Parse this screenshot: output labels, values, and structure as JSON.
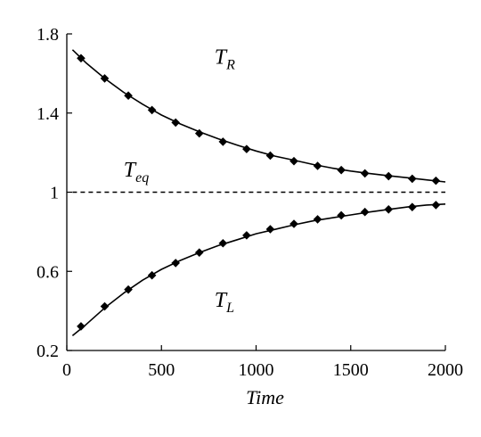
{
  "chart_data": {
    "type": "line",
    "title": "",
    "xlabel": "Time",
    "ylabel": "",
    "xlim": [
      0,
      2000
    ],
    "ylim": [
      0.2,
      1.8
    ],
    "x_ticks": [
      0,
      500,
      1000,
      1500,
      2000
    ],
    "y_ticks": [
      0.2,
      0.6,
      1,
      1.4,
      1.8
    ],
    "y_tick_labels": [
      "0.2",
      "0.6",
      "1",
      "1.4",
      "1.8"
    ],
    "grid": false,
    "legend": "none",
    "series": [
      {
        "name": "T_R",
        "label_main": "T",
        "label_sub": "R",
        "label_at": [
          780,
          1.65
        ],
        "style": "line+diamond-markers",
        "color": "#000000",
        "curve": {
          "x": [
            30,
            100,
            200,
            300,
            400,
            500,
            600,
            700,
            800,
            900,
            1000,
            1100,
            1200,
            1300,
            1400,
            1500,
            1600,
            1700,
            1800,
            1900,
            2000
          ],
          "y": [
            1.72,
            1.655,
            1.575,
            1.505,
            1.445,
            1.39,
            1.345,
            1.305,
            1.27,
            1.238,
            1.208,
            1.182,
            1.162,
            1.14,
            1.122,
            1.107,
            1.094,
            1.083,
            1.073,
            1.062,
            1.052
          ]
        },
        "markers": {
          "x": [
            75,
            200,
            325,
            450,
            575,
            700,
            825,
            950,
            1075,
            1200,
            1325,
            1450,
            1575,
            1700,
            1825,
            1950
          ],
          "y": [
            1.677,
            1.575,
            1.488,
            1.415,
            1.352,
            1.297,
            1.255,
            1.218,
            1.185,
            1.157,
            1.133,
            1.112,
            1.095,
            1.081,
            1.068,
            1.058
          ]
        }
      },
      {
        "name": "T_eq",
        "label_main": "T",
        "label_sub": "eq",
        "label_at": [
          300,
          1.08
        ],
        "style": "dashed",
        "color": "#000000",
        "curve": {
          "x": [
            30,
            2000
          ],
          "y": [
            1.0,
            1.0
          ]
        }
      },
      {
        "name": "T_L",
        "label_main": "T",
        "label_sub": "L",
        "label_at": [
          780,
          0.42
        ],
        "style": "line+diamond-markers",
        "color": "#000000",
        "curve": {
          "x": [
            30,
            100,
            200,
            300,
            400,
            500,
            600,
            700,
            800,
            900,
            1000,
            1100,
            1200,
            1300,
            1400,
            1500,
            1600,
            1700,
            1800,
            1900,
            2000
          ],
          "y": [
            0.275,
            0.33,
            0.415,
            0.49,
            0.555,
            0.61,
            0.655,
            0.695,
            0.73,
            0.76,
            0.79,
            0.812,
            0.835,
            0.855,
            0.87,
            0.885,
            0.9,
            0.913,
            0.925,
            0.935,
            0.94
          ]
        },
        "markers": {
          "x": [
            75,
            200,
            325,
            450,
            575,
            700,
            825,
            950,
            1075,
            1200,
            1325,
            1450,
            1575,
            1700,
            1825,
            1950
          ],
          "y": [
            0.322,
            0.423,
            0.508,
            0.58,
            0.642,
            0.695,
            0.742,
            0.782,
            0.813,
            0.84,
            0.863,
            0.883,
            0.9,
            0.913,
            0.925,
            0.935
          ]
        }
      }
    ]
  }
}
